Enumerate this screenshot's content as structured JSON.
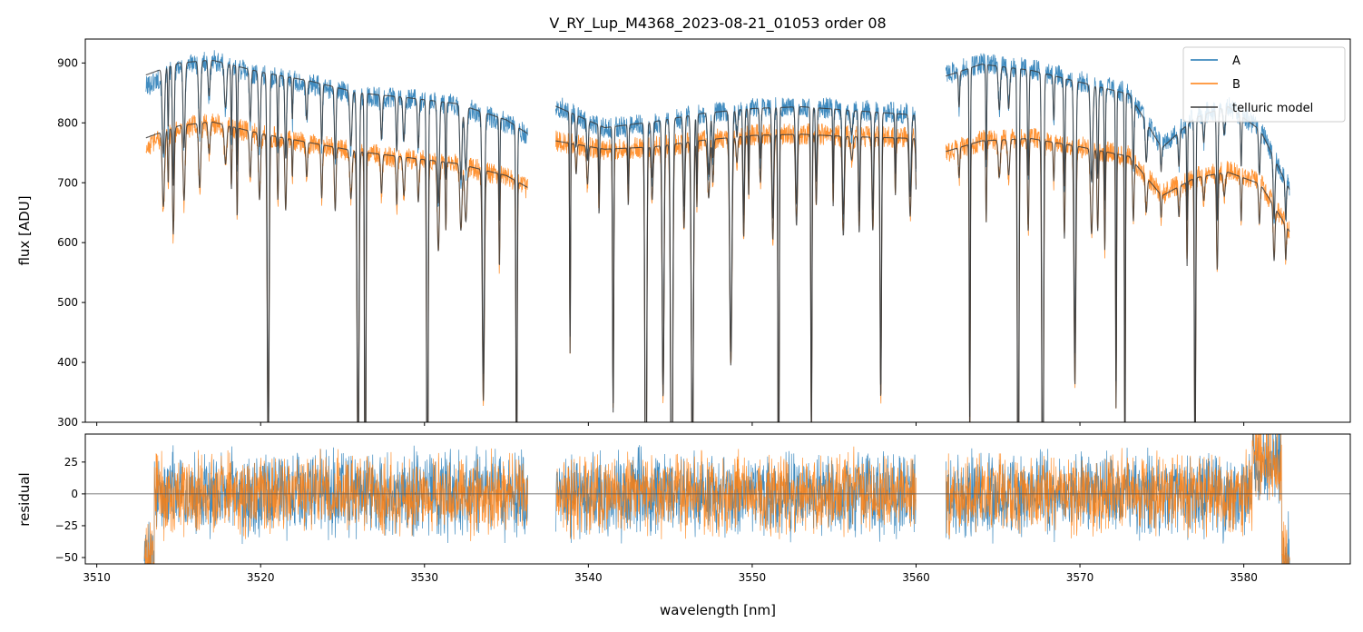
{
  "colors": {
    "A": "#1f77b4",
    "B": "#ff7f0e",
    "telluric": "#3a3a3a",
    "zero": "#555555"
  },
  "chart_data": {
    "title": "V_RY_Lup_M4368_2023-08-21_01053  order 08",
    "xlabel": "wavelength [nm]",
    "x_range": [
      3509.3,
      3586.5
    ],
    "x_ticks": [
      3510,
      3520,
      3530,
      3540,
      3550,
      3560,
      3570,
      3580
    ],
    "x_tick_labels": [
      "3510",
      "3520",
      "3530",
      "3540",
      "3550",
      "3560",
      "3570",
      "3580"
    ],
    "legend_position": "upper right",
    "gaps": [
      [
        3536.3,
        3538.0
      ],
      [
        3560.0,
        3561.8
      ]
    ],
    "panels": [
      {
        "type": "line",
        "ylabel": "flux [ADU]",
        "ylim": [
          300,
          940
        ],
        "y_ticks": [
          300,
          400,
          500,
          600,
          700,
          800,
          900
        ],
        "y_tick_labels": [
          "300",
          "400",
          "500",
          "600",
          "700",
          "800",
          "900"
        ],
        "series": [
          {
            "name": "A",
            "color_key": "A",
            "x": [
              3513.0,
              3515,
              3517,
              3520,
              3523,
              3526,
              3529,
              3532,
              3535,
              3536.3,
              3538.0,
              3541,
              3544,
              3547,
              3550,
              3553,
              3556,
              3560.0,
              3561.8,
              3564,
              3567,
              3570,
              3573,
              3575,
              3577,
              3579,
              3581,
              3582.8
            ],
            "y": [
              860,
              895,
              905,
              880,
              865,
              845,
              840,
              830,
              800,
              780,
              830,
              790,
              800,
              815,
              825,
              828,
              822,
              815,
              880,
              900,
              890,
              870,
              850,
              760,
              810,
              830,
              790,
              690
            ]
          },
          {
            "name": "B",
            "color_key": "B",
            "x": [
              3513.0,
              3515,
              3517,
              3520,
              3523,
              3526,
              3529,
              3532,
              3535,
              3536.3,
              3538.0,
              3541,
              3544,
              3547,
              3550,
              3553,
              3556,
              3560.0,
              3561.8,
              3564,
              3567,
              3570,
              3573,
              3575,
              3577,
              3579,
              3581,
              3582.8
            ],
            "y": [
              760,
              790,
              800,
              780,
              765,
              750,
              740,
              730,
              710,
              690,
              770,
              755,
              760,
              770,
              780,
              782,
              778,
              775,
              750,
              770,
              775,
              760,
              745,
              680,
              710,
              720,
              700,
              620
            ]
          },
          {
            "name": "telluric model",
            "color_key": "telluric",
            "x": [
              3513.0,
              3515,
              3517,
              3520,
              3523,
              3526,
              3529,
              3532,
              3535,
              3536.3,
              3538.0,
              3541,
              3544,
              3547,
              3550,
              3553,
              3556,
              3560.0,
              3561.8,
              3564,
              3567,
              3570,
              3573,
              3575,
              3577,
              3579,
              3581,
              3582.8
            ],
            "y": [
              880,
              900,
              905,
              885,
              870,
              850,
              842,
              832,
              805,
              782,
              828,
              792,
              802,
              816,
              824,
              827,
              821,
              813,
              878,
              898,
              888,
              868,
              848,
              758,
              808,
              828,
              788,
              688
            ]
          },
          {
            "name": "telluric model (B)",
            "color_key": "telluric",
            "legend": false,
            "x": [
              3513.0,
              3515,
              3517,
              3520,
              3523,
              3526,
              3529,
              3532,
              3535,
              3536.3,
              3538.0,
              3541,
              3544,
              3547,
              3550,
              3553,
              3556,
              3560.0,
              3561.8,
              3564,
              3567,
              3570,
              3573,
              3575,
              3577,
              3579,
              3581,
              3582.8
            ],
            "y": [
              775,
              795,
              802,
              782,
              767,
              752,
              742,
              732,
              712,
              692,
              770,
              756,
              760,
              771,
              779,
              781,
              777,
              774,
              752,
              770,
              774,
              760,
              744,
              678,
              708,
              718,
              698,
              618
            ]
          }
        ]
      },
      {
        "type": "line",
        "ylabel": "residual",
        "ylim": [
          -55,
          47
        ],
        "y_ticks": [
          -50,
          -25,
          0,
          25
        ],
        "y_tick_labels": [
          "−50",
          "−25",
          "0",
          "25"
        ],
        "zero_line": true,
        "series_style": "noise",
        "series": [
          {
            "name": "A",
            "color_key": "A",
            "band": [
              -40,
              40
            ]
          },
          {
            "name": "B",
            "color_key": "B",
            "band": [
              -35,
              40
            ]
          }
        ]
      }
    ]
  }
}
